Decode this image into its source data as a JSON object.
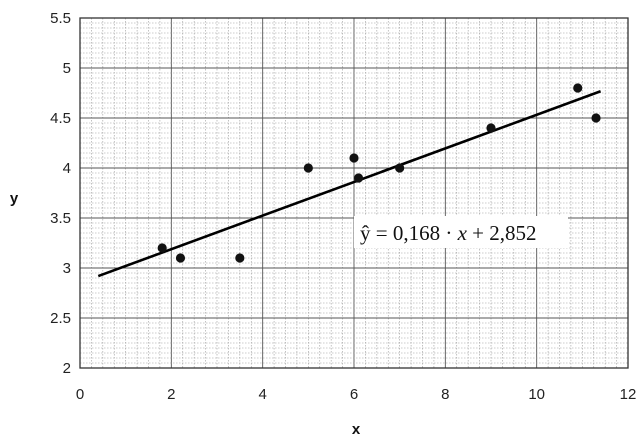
{
  "chart_data": {
    "type": "scatter",
    "xlabel": "x",
    "ylabel": "y",
    "xlim": [
      0,
      12
    ],
    "ylim": [
      2,
      5.5
    ],
    "x_ticks": [
      0,
      2,
      4,
      6,
      8,
      10,
      12
    ],
    "y_ticks": [
      "2",
      "2.5",
      "3",
      "3.5",
      "4",
      "4.5",
      "5",
      "5.5"
    ],
    "x_tick_labels": [
      "0",
      "2",
      "4",
      "6",
      "8",
      "10",
      "12"
    ],
    "grid": true,
    "points": [
      {
        "x": 1.8,
        "y": 3.2
      },
      {
        "x": 2.2,
        "y": 3.1
      },
      {
        "x": 3.5,
        "y": 3.1
      },
      {
        "x": 5.0,
        "y": 4.0
      },
      {
        "x": 6.0,
        "y": 4.1
      },
      {
        "x": 6.1,
        "y": 3.9
      },
      {
        "x": 7.0,
        "y": 4.0
      },
      {
        "x": 9.0,
        "y": 4.4
      },
      {
        "x": 10.9,
        "y": 4.8
      },
      {
        "x": 11.3,
        "y": 4.5
      }
    ],
    "trendline": {
      "slope": 0.168,
      "intercept": 2.852,
      "x_range": [
        0.4,
        11.4
      ],
      "equation_left": "ŷ = 0,168 · ",
      "equation_x": "x",
      "equation_right": " + 2,852"
    }
  }
}
